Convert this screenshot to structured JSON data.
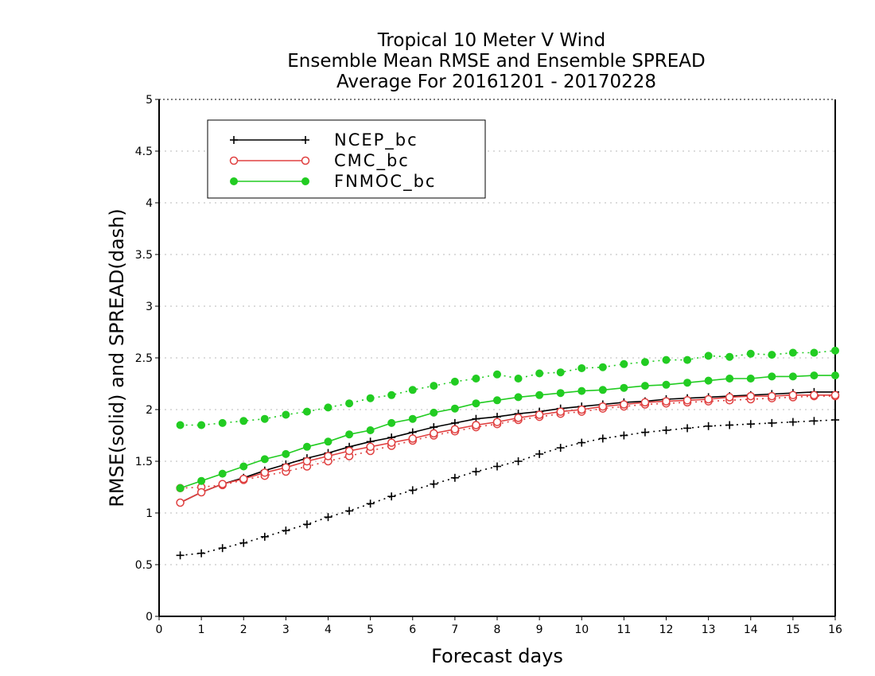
{
  "chart_data": {
    "type": "line",
    "title": [
      "Tropical 10 Meter V Wind",
      "Ensemble Mean RMSE and Ensemble SPREAD",
      "Average For 20161201 - 20170228"
    ],
    "xlabel": "Forecast days",
    "ylabel": "RMSE(solid) and SPREAD(dash)",
    "xlim": [
      0,
      16
    ],
    "ylim": [
      0,
      5
    ],
    "xticks": [
      "0",
      "1",
      "2",
      "3",
      "4",
      "5",
      "6",
      "7",
      "8",
      "9",
      "10",
      "11",
      "12",
      "13",
      "14",
      "15",
      "16"
    ],
    "yticks": [
      "0",
      "0.5",
      "1",
      "1.5",
      "2",
      "2.5",
      "3",
      "3.5",
      "4",
      "4.5",
      "5"
    ],
    "grid": "horizontal dotted",
    "legend_position": "top-left",
    "x": [
      0.5,
      1,
      1.5,
      2,
      2.5,
      3,
      3.5,
      4,
      4.5,
      5,
      5.5,
      6,
      6.5,
      7,
      7.5,
      8,
      8.5,
      9,
      9.5,
      10,
      10.5,
      11,
      11.5,
      12,
      12.5,
      13,
      13.5,
      14,
      14.5,
      15,
      15.5,
      16
    ],
    "series": [
      {
        "name": "NCEP_bc",
        "color": "#000000",
        "marker": "plus",
        "rmse": [
          1.1,
          1.2,
          1.28,
          1.34,
          1.41,
          1.47,
          1.53,
          1.58,
          1.64,
          1.69,
          1.73,
          1.78,
          1.83,
          1.87,
          1.91,
          1.93,
          1.96,
          1.98,
          2.01,
          2.03,
          2.05,
          2.07,
          2.08,
          2.1,
          2.11,
          2.12,
          2.13,
          2.14,
          2.15,
          2.16,
          2.17,
          2.17
        ],
        "spread": [
          0.59,
          0.61,
          0.66,
          0.71,
          0.77,
          0.83,
          0.89,
          0.96,
          1.02,
          1.09,
          1.16,
          1.22,
          1.28,
          1.34,
          1.4,
          1.45,
          1.5,
          1.57,
          1.63,
          1.68,
          1.72,
          1.75,
          1.78,
          1.8,
          1.82,
          1.84,
          1.85,
          1.86,
          1.87,
          1.88,
          1.89,
          1.9
        ]
      },
      {
        "name": "CMC_bc",
        "color": "#e04040",
        "marker": "open-circle",
        "rmse": [
          1.1,
          1.2,
          1.28,
          1.33,
          1.39,
          1.44,
          1.5,
          1.55,
          1.6,
          1.64,
          1.68,
          1.72,
          1.77,
          1.81,
          1.85,
          1.88,
          1.92,
          1.95,
          1.98,
          2.0,
          2.03,
          2.05,
          2.07,
          2.08,
          2.09,
          2.1,
          2.12,
          2.13,
          2.13,
          2.14,
          2.14,
          2.14
        ],
        "spread": [
          1.24,
          1.25,
          1.27,
          1.32,
          1.36,
          1.4,
          1.45,
          1.5,
          1.55,
          1.6,
          1.65,
          1.7,
          1.75,
          1.79,
          1.83,
          1.86,
          1.9,
          1.93,
          1.96,
          1.98,
          2.01,
          2.03,
          2.05,
          2.06,
          2.07,
          2.08,
          2.09,
          2.1,
          2.11,
          2.12,
          2.13,
          2.13
        ]
      },
      {
        "name": "FNMOC_bc",
        "color": "#22cc22",
        "marker": "filled-circle",
        "rmse": [
          1.24,
          1.31,
          1.38,
          1.45,
          1.52,
          1.57,
          1.64,
          1.69,
          1.76,
          1.8,
          1.87,
          1.91,
          1.97,
          2.01,
          2.06,
          2.09,
          2.12,
          2.14,
          2.16,
          2.18,
          2.19,
          2.21,
          2.23,
          2.24,
          2.26,
          2.28,
          2.3,
          2.3,
          2.32,
          2.32,
          2.33,
          2.33
        ],
        "spread": [
          1.85,
          1.85,
          1.87,
          1.89,
          1.91,
          1.95,
          1.98,
          2.02,
          2.06,
          2.11,
          2.14,
          2.19,
          2.23,
          2.27,
          2.3,
          2.34,
          2.3,
          2.35,
          2.36,
          2.4,
          2.41,
          2.44,
          2.46,
          2.48,
          2.48,
          2.52,
          2.51,
          2.54,
          2.53,
          2.55,
          2.55,
          2.57
        ]
      }
    ]
  }
}
